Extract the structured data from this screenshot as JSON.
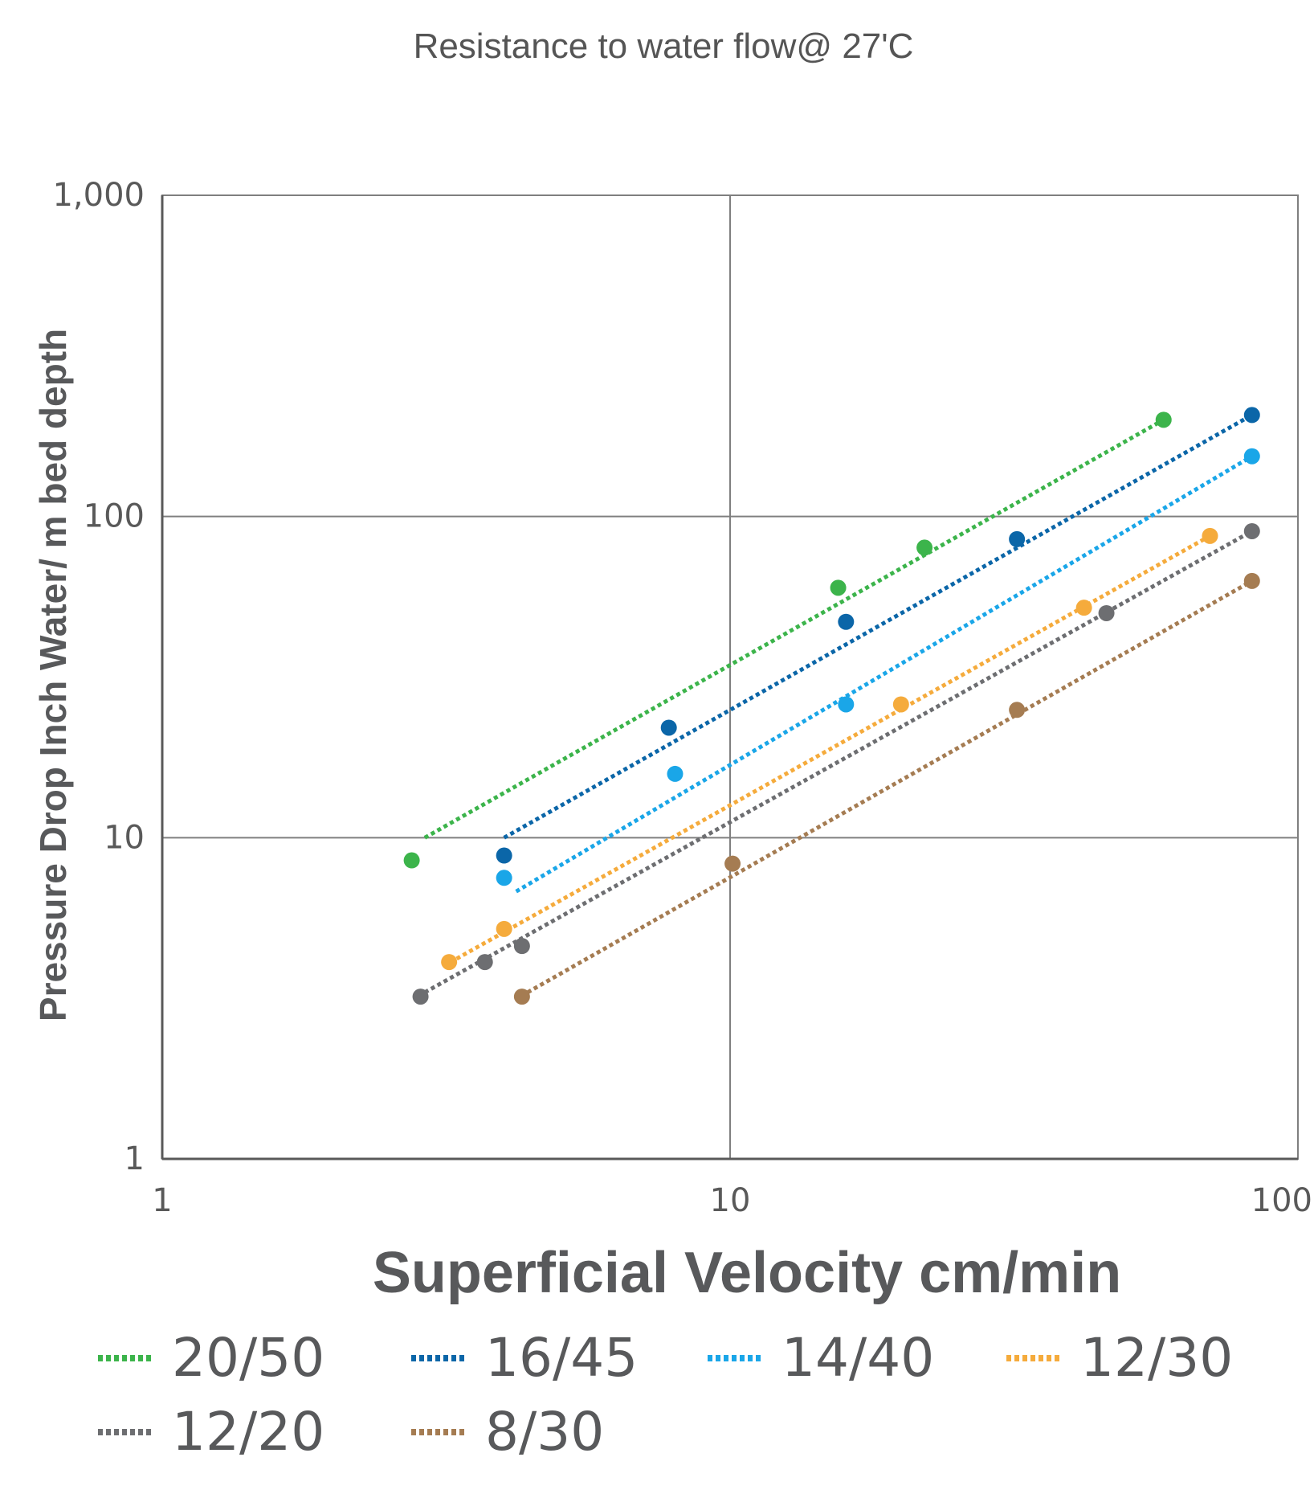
{
  "chart_data": {
    "type": "scatter",
    "title": "Resistance to water flow@ 27'C",
    "xlabel": "Superficial Velocity cm/min",
    "ylabel": "Pressure Drop Inch Water/ m bed depth",
    "xscale": "log",
    "yscale": "log",
    "xlim": [
      1,
      100
    ],
    "ylim": [
      1,
      1000
    ],
    "x_ticks": [
      1,
      10,
      100
    ],
    "x_tick_labels": [
      "1",
      "10",
      "100"
    ],
    "y_ticks": [
      1,
      10,
      100,
      1000
    ],
    "y_tick_labels": [
      "1",
      "10",
      "100",
      "1,000"
    ],
    "grid": true,
    "legend_position": "bottom",
    "trendline": "dotted power fit per series",
    "series": [
      {
        "name": "20/50",
        "color": "#3cb44b",
        "x": [
          2.75,
          15.5,
          22,
          58
        ],
        "y": [
          8.5,
          60,
          80,
          200
        ],
        "trend": [
          [
            2.9,
            10
          ],
          [
            58,
            200
          ]
        ]
      },
      {
        "name": "16/45",
        "color": "#0b66a8",
        "x": [
          4,
          7.8,
          16,
          32,
          83
        ],
        "y": [
          8.8,
          22,
          47,
          85,
          207
        ],
        "trend": [
          [
            4.0,
            10
          ],
          [
            83,
            207
          ]
        ]
      },
      {
        "name": "14/40",
        "color": "#1aa6e8",
        "x": [
          4,
          8,
          16,
          83
        ],
        "y": [
          7.5,
          15.8,
          26,
          154
        ],
        "trend": [
          [
            4.2,
            6.8
          ],
          [
            83,
            154
          ]
        ]
      },
      {
        "name": "12/30",
        "color": "#f5ab3c",
        "x": [
          3.2,
          4,
          20,
          42,
          70
        ],
        "y": [
          4.1,
          5.2,
          26,
          52,
          87
        ],
        "trend": [
          [
            3.3,
            4.2
          ],
          [
            70,
            87
          ]
        ]
      },
      {
        "name": "12/20",
        "color": "#6d6e71",
        "x": [
          2.85,
          3.7,
          4.3,
          46,
          83
        ],
        "y": [
          3.2,
          4.1,
          4.6,
          50,
          90
        ],
        "trend": [
          [
            2.9,
            3.3
          ],
          [
            83,
            90
          ]
        ]
      },
      {
        "name": "8/30",
        "color": "#a57c52",
        "x": [
          4.3,
          10.1,
          32,
          83
        ],
        "y": [
          3.2,
          8.3,
          25,
          63
        ],
        "trend": [
          [
            4.4,
            3.3
          ],
          [
            83,
            63
          ]
        ]
      }
    ]
  }
}
